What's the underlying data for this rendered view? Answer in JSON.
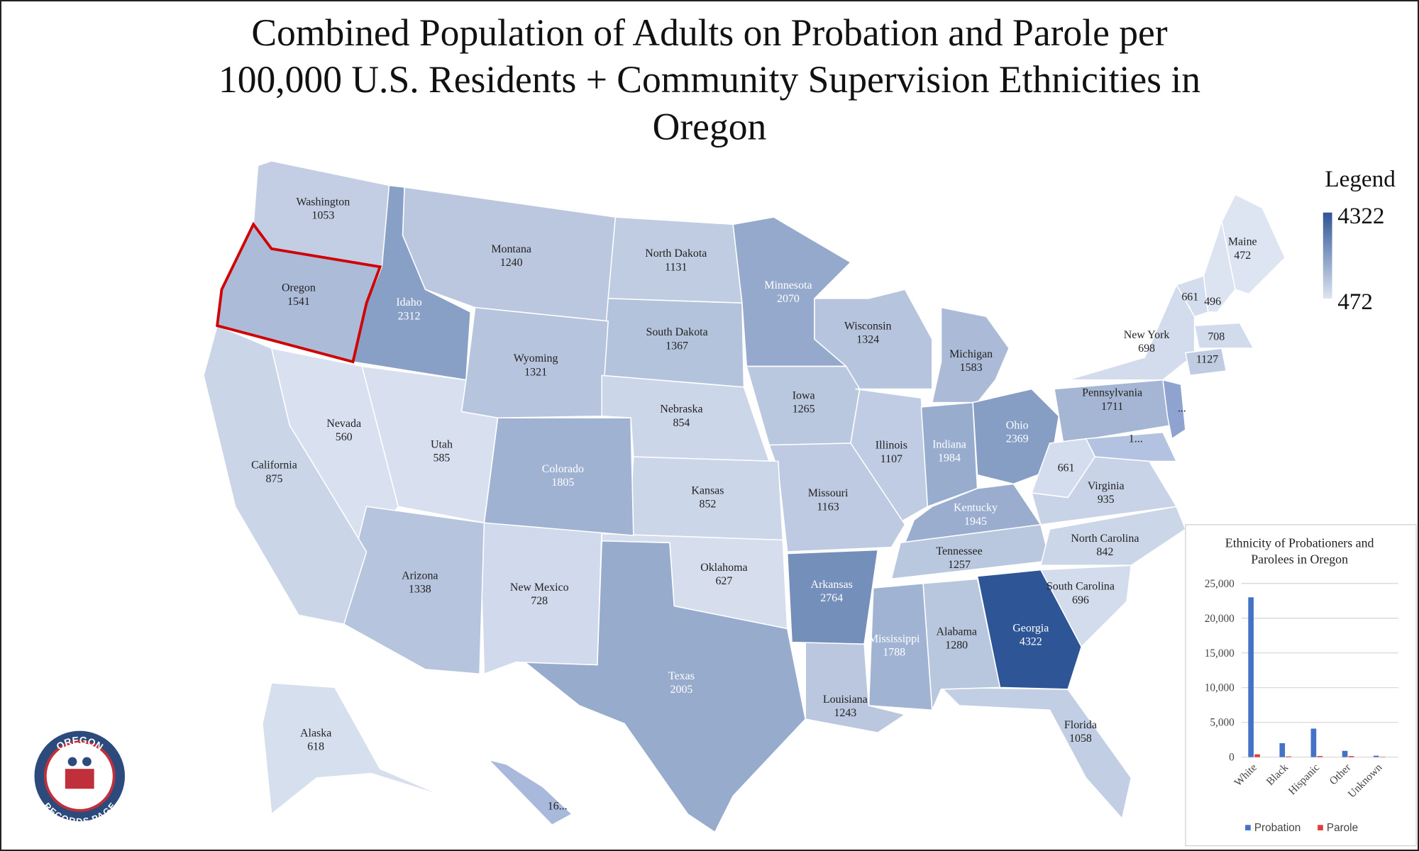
{
  "map": {
    "title_lines": [
      "Combined Population of Adults on Probation and Parole per",
      "100,000 U.S. Residents + Community Supervision Ethnicities in",
      "Oregon"
    ],
    "highlight_color": "#d00000",
    "states": [
      {
        "name": "Washington",
        "value": 1053
      },
      {
        "name": "Oregon",
        "value": 1541,
        "highlighted": true
      },
      {
        "name": "Idaho",
        "value": 2312
      },
      {
        "name": "Montana",
        "value": 1240
      },
      {
        "name": "North Dakota",
        "value": 1131
      },
      {
        "name": "South Dakota",
        "value": 1367
      },
      {
        "name": "Minnesota",
        "value": 2070
      },
      {
        "name": "Wisconsin",
        "value": 1324
      },
      {
        "name": "Michigan",
        "value": 1583
      },
      {
        "name": "Wyoming",
        "value": 1321
      },
      {
        "name": "Nebraska",
        "value": 854
      },
      {
        "name": "Iowa",
        "value": 1265
      },
      {
        "name": "Illinois",
        "value": 1107
      },
      {
        "name": "Indiana",
        "value": 1984
      },
      {
        "name": "Ohio",
        "value": 2369
      },
      {
        "name": "Pennsylvania",
        "value": 1711
      },
      {
        "name": "New York",
        "value": 698
      },
      {
        "value": 661
      },
      {
        "value": 496
      },
      {
        "name": "Maine",
        "value": 472
      },
      {
        "value": 708
      },
      {
        "value": 1127
      },
      {
        "label": "...",
        "color": "#8ea3cf"
      },
      {
        "label": "1...",
        "color": "#b3c2e1"
      },
      {
        "value": 661
      },
      {
        "name": "Virginia",
        "value": 935
      },
      {
        "name": "Kentucky",
        "value": 1945
      },
      {
        "name": "Tennessee",
        "value": 1257
      },
      {
        "name": "North Carolina",
        "value": 842
      },
      {
        "name": "South Carolina",
        "value": 696
      },
      {
        "name": "Georgia",
        "value": 4322
      },
      {
        "name": "Florida",
        "value": 1058
      },
      {
        "name": "Alabama",
        "value": 1280
      },
      {
        "name": "Mississippi",
        "value": 1788
      },
      {
        "name": "Louisiana",
        "value": 1243
      },
      {
        "name": "Arkansas",
        "value": 2764
      },
      {
        "name": "Missouri",
        "value": 1163
      },
      {
        "name": "Kansas",
        "value": 852
      },
      {
        "name": "Oklahoma",
        "value": 627
      },
      {
        "name": "Texas",
        "value": 2005
      },
      {
        "name": "New Mexico",
        "value": 728
      },
      {
        "name": "Colorado",
        "value": 1805
      },
      {
        "name": "Utah",
        "value": 585
      },
      {
        "name": "Nevada",
        "value": 560
      },
      {
        "name": "Arizona",
        "value": 1338
      },
      {
        "name": "California",
        "value": 875
      },
      {
        "name": "Alaska",
        "value": 618
      },
      {
        "label": "16...",
        "color": "#a9b9dc"
      }
    ],
    "legend": {
      "title": "Legend",
      "max": 4322,
      "min": 472,
      "colors": [
        "#dde4f2",
        "#2e5595"
      ]
    }
  },
  "chart_data": {
    "type": "bar",
    "title": "Ethnicity of Probationers and Parolees in Oregon",
    "categories": [
      "White",
      "Black",
      "Hispanic",
      "Other",
      "Unknown"
    ],
    "series": [
      {
        "name": "Probation",
        "color": "#4472c4",
        "values": [
          23000,
          2000,
          4100,
          900,
          200
        ]
      },
      {
        "name": "Parole",
        "color": "#e03c3c",
        "values": [
          400,
          100,
          150,
          150,
          50
        ]
      }
    ],
    "ylim": [
      0,
      25000
    ],
    "yticks": [
      0,
      {
        "value": 5000,
        "label": "5,000"
      },
      {
        "value": 10000,
        "label": "10,000"
      },
      {
        "value": 15000,
        "label": "15,000"
      },
      {
        "value": 20000,
        "label": "20,000"
      },
      {
        "value": 25000,
        "label": "25,000"
      }
    ],
    "grid": true
  },
  "logo": {
    "top": "OREGON",
    "bottom": "RECORDS PAGE"
  }
}
